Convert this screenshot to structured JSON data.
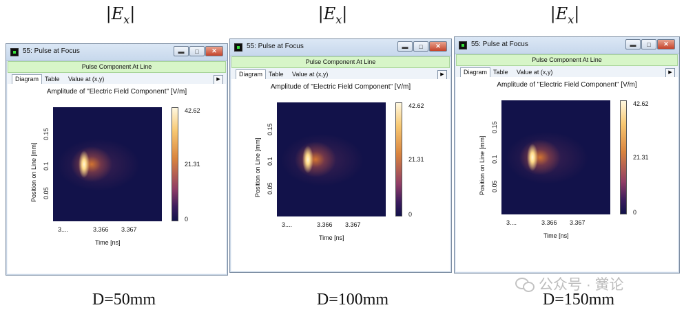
{
  "top_labels": {
    "left": {
      "main": "|E",
      "sub": "x",
      "end": "|"
    },
    "mid": {
      "main": "|E",
      "sub": "x",
      "end": "|"
    },
    "right": {
      "main": "|E",
      "sub": "x",
      "end": "|"
    }
  },
  "bottom_labels": {
    "left": "D=50mm",
    "mid": "D=100mm",
    "right": "D=150mm"
  },
  "watermark": "公众号 · 黉论",
  "windows": [
    {
      "title": "55: Pulse at Focus",
      "pulse_bar": "Pulse Component At Line",
      "tabs": [
        "Diagram",
        "Table",
        "Value at (x,y)"
      ],
      "tab_arrow": "▶",
      "plot_title": "Amplitude of \"Electric Field Component\"  [V/m]",
      "ylabel": "Position on Line [mm]",
      "yticks": [
        "0.15",
        "0.1",
        "0.05"
      ],
      "xlabel": "Time [ns]",
      "xticks": [
        "3....",
        "3.366",
        "3.367"
      ],
      "colorbar": {
        "max": "42.62",
        "mid": "21.31",
        "min": "0"
      },
      "buttons": {
        "minimize": "▬",
        "maximize": "□",
        "close": "✕"
      }
    },
    {
      "title": "55: Pulse at Focus",
      "pulse_bar": "Pulse Component At Line",
      "tabs": [
        "Diagram",
        "Table",
        "Value at (x,y)"
      ],
      "tab_arrow": "▶",
      "plot_title": "Amplitude of \"Electric Field Component\"  [V/m]",
      "ylabel": "Position on Line [mm]",
      "yticks": [
        "0.15",
        "0.1",
        "0.05"
      ],
      "xlabel": "Time [ns]",
      "xticks": [
        "3....",
        "3.366",
        "3.367"
      ],
      "colorbar": {
        "max": "42.62",
        "mid": "21.31",
        "min": "0"
      },
      "buttons": {
        "minimize": "▬",
        "maximize": "□",
        "close": "✕"
      }
    },
    {
      "title": "55: Pulse at Focus",
      "pulse_bar": "Pulse Component At Line",
      "tabs": [
        "Diagram",
        "Table",
        "Value at (x,y)"
      ],
      "tab_arrow": "▶",
      "plot_title": "Amplitude of \"Electric Field Component\"  [V/m]",
      "ylabel": "Position on Line [mm]",
      "yticks": [
        "0.15",
        "0.1",
        "0.05"
      ],
      "xlabel": "Time [ns]",
      "xticks": [
        "3....",
        "3.366",
        "3.367"
      ],
      "colorbar": {
        "max": "42.62",
        "mid": "21.31",
        "min": "0"
      },
      "buttons": {
        "minimize": "▬",
        "maximize": "□",
        "close": "✕"
      }
    }
  ]
}
